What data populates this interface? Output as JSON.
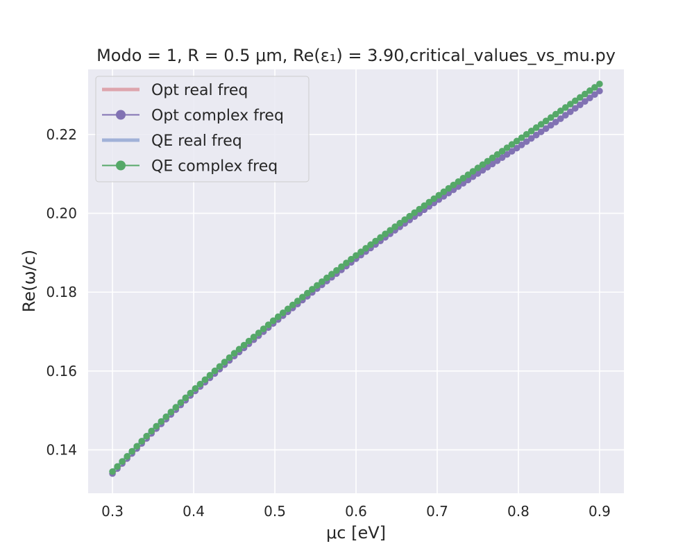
{
  "chart_data": {
    "type": "line",
    "title": "Modo = 1, R = 0.5 μm, Re(ε₁) = 3.90,critical_values_vs_mu.py",
    "xlabel": "μc [eV]",
    "ylabel": "Re(ω/c)",
    "xlim": [
      0.27,
      0.93
    ],
    "ylim": [
      0.129,
      0.2365
    ],
    "xticks": [
      0.3,
      0.4,
      0.5,
      0.6,
      0.7,
      0.8,
      0.9
    ],
    "xtick_labels": [
      "0.3",
      "0.4",
      "0.5",
      "0.6",
      "0.7",
      "0.8",
      "0.9"
    ],
    "yticks": [
      0.14,
      0.16,
      0.18,
      0.2,
      0.22
    ],
    "ytick_labels": [
      "0.14",
      "0.16",
      "0.18",
      "0.20",
      "0.22"
    ],
    "grid": true,
    "legend_position": "top-left",
    "background": "#eaeaf2",
    "series": [
      {
        "name": "Opt real freq",
        "style": "line",
        "color": "#dda5ad",
        "x": [
          0.3,
          0.35,
          0.4,
          0.45,
          0.5,
          0.55,
          0.6,
          0.65,
          0.7,
          0.75,
          0.8,
          0.85,
          0.9
        ],
        "values": [
          0.134,
          0.1446,
          0.1546,
          0.1638,
          0.1724,
          0.1806,
          0.1885,
          0.196,
          0.2032,
          0.2101,
          0.2168,
          0.2237,
          0.231
        ]
      },
      {
        "name": "Opt complex freq",
        "style": "line-marker",
        "color": "#8172b3",
        "x": [
          0.3,
          0.35,
          0.4,
          0.45,
          0.5,
          0.55,
          0.6,
          0.65,
          0.7,
          0.75,
          0.8,
          0.85,
          0.9
        ],
        "values": [
          0.134,
          0.1446,
          0.1546,
          0.1638,
          0.1724,
          0.1806,
          0.1885,
          0.196,
          0.2032,
          0.2101,
          0.2168,
          0.2237,
          0.231
        ]
      },
      {
        "name": "QE real freq",
        "style": "line",
        "color": "#a1b1d8",
        "x": [
          0.3,
          0.35,
          0.4,
          0.45,
          0.5,
          0.55,
          0.6,
          0.65,
          0.7,
          0.75,
          0.8,
          0.85,
          0.9
        ],
        "values": [
          0.1345,
          0.1452,
          0.1552,
          0.1645,
          0.1731,
          0.1814,
          0.1893,
          0.1969,
          0.2043,
          0.2115,
          0.2186,
          0.2257,
          0.2328
        ]
      },
      {
        "name": "QE complex freq",
        "style": "line-marker",
        "color": "#55a868",
        "x": [
          0.3,
          0.35,
          0.4,
          0.45,
          0.5,
          0.55,
          0.6,
          0.65,
          0.7,
          0.75,
          0.8,
          0.85,
          0.9
        ],
        "values": [
          0.1345,
          0.1452,
          0.1552,
          0.1645,
          0.1731,
          0.1814,
          0.1893,
          0.1969,
          0.2043,
          0.2115,
          0.2186,
          0.2257,
          0.2328
        ]
      }
    ]
  }
}
